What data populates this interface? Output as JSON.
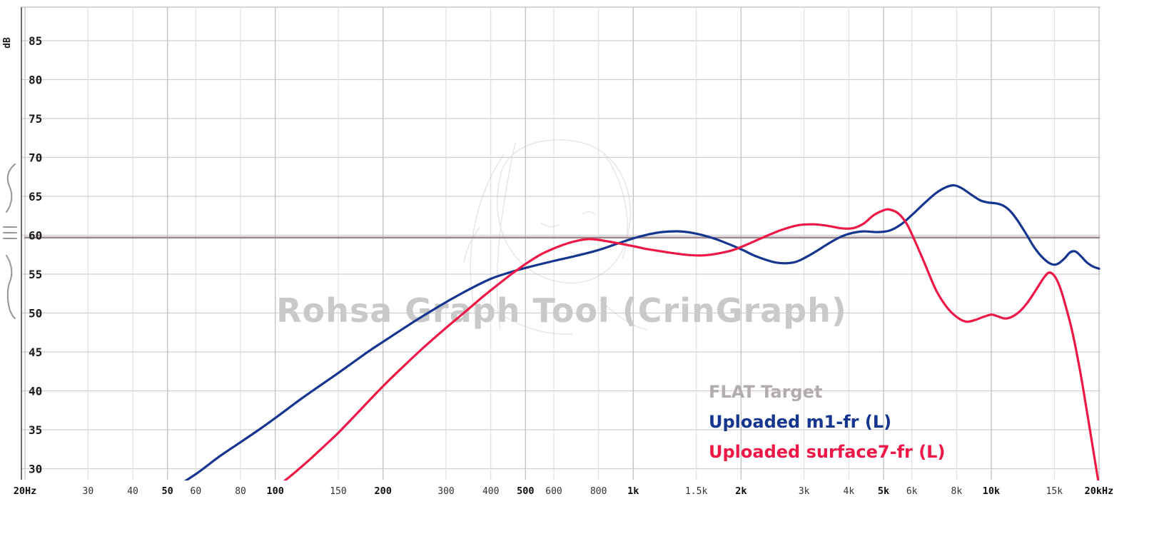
{
  "watermark": "Rohsa Graph Tool (CrinGraph)",
  "y_axis": {
    "unit": "dB",
    "ticks": [
      85,
      80,
      75,
      70,
      65,
      60,
      55,
      50,
      45,
      40,
      35,
      30
    ]
  },
  "x_axis": {
    "ticks": [
      {
        "f": 20,
        "label": "20Hz",
        "major": true
      },
      {
        "f": 30,
        "label": "30",
        "major": false
      },
      {
        "f": 40,
        "label": "40",
        "major": false
      },
      {
        "f": 50,
        "label": "50",
        "major": true
      },
      {
        "f": 60,
        "label": "60",
        "major": false
      },
      {
        "f": 80,
        "label": "80",
        "major": false
      },
      {
        "f": 100,
        "label": "100",
        "major": true
      },
      {
        "f": 150,
        "label": "150",
        "major": false
      },
      {
        "f": 200,
        "label": "200",
        "major": true
      },
      {
        "f": 300,
        "label": "300",
        "major": false
      },
      {
        "f": 400,
        "label": "400",
        "major": false
      },
      {
        "f": 500,
        "label": "500",
        "major": true
      },
      {
        "f": 600,
        "label": "600",
        "major": false
      },
      {
        "f": 800,
        "label": "800",
        "major": false
      },
      {
        "f": 1000,
        "label": "1k",
        "major": true
      },
      {
        "f": 1500,
        "label": "1.5k",
        "major": false
      },
      {
        "f": 2000,
        "label": "2k",
        "major": true
      },
      {
        "f": 3000,
        "label": "3k",
        "major": false
      },
      {
        "f": 4000,
        "label": "4k",
        "major": false
      },
      {
        "f": 5000,
        "label": "5k",
        "major": true
      },
      {
        "f": 6000,
        "label": "6k",
        "major": false
      },
      {
        "f": 8000,
        "label": "8k",
        "major": false
      },
      {
        "f": 10000,
        "label": "10k",
        "major": true
      },
      {
        "f": 15000,
        "label": "15k",
        "major": false
      },
      {
        "f": 20000,
        "label": "20kHz",
        "major": true
      }
    ]
  },
  "legend": [
    {
      "label": "FLAT Target",
      "color": "#b3acae"
    },
    {
      "label": "Uploaded m1-fr (L)",
      "color": "#16358f"
    },
    {
      "label": "Uploaded surface7-fr (L)",
      "color": "#ee1846"
    }
  ],
  "chart_data": {
    "type": "line",
    "x_scale": "log",
    "xlim": [
      20,
      20000
    ],
    "ylim": [
      30,
      85
    ],
    "ylabel": "dB",
    "grid": true,
    "legend_position": "bottom-right",
    "series": [
      {
        "name": "FLAT Target",
        "color": "#9b8a8e",
        "width": 2.6,
        "points": [
          [
            20,
            59.7
          ],
          [
            20000,
            59.7
          ]
        ]
      },
      {
        "name": "Uploaded m1-fr (L)",
        "color": "#16358f",
        "width": 3.2,
        "points": [
          [
            52,
            27.5
          ],
          [
            60,
            29.3
          ],
          [
            70,
            31.6
          ],
          [
            80,
            33.4
          ],
          [
            90,
            35.0
          ],
          [
            100,
            36.5
          ],
          [
            120,
            39.2
          ],
          [
            150,
            42.3
          ],
          [
            180,
            44.9
          ],
          [
            200,
            46.3
          ],
          [
            250,
            49.2
          ],
          [
            300,
            51.4
          ],
          [
            350,
            53.1
          ],
          [
            400,
            54.4
          ],
          [
            450,
            55.2
          ],
          [
            500,
            55.8
          ],
          [
            600,
            56.7
          ],
          [
            700,
            57.4
          ],
          [
            800,
            58.1
          ],
          [
            900,
            58.9
          ],
          [
            1000,
            59.6
          ],
          [
            1100,
            60.1
          ],
          [
            1200,
            60.4
          ],
          [
            1350,
            60.5
          ],
          [
            1500,
            60.2
          ],
          [
            1700,
            59.5
          ],
          [
            2000,
            58.2
          ],
          [
            2200,
            57.3
          ],
          [
            2500,
            56.5
          ],
          [
            2800,
            56.5
          ],
          [
            3100,
            57.4
          ],
          [
            3500,
            58.9
          ],
          [
            3800,
            59.8
          ],
          [
            4100,
            60.3
          ],
          [
            4400,
            60.5
          ],
          [
            4800,
            60.4
          ],
          [
            5200,
            60.6
          ],
          [
            5600,
            61.4
          ],
          [
            6000,
            62.6
          ],
          [
            6500,
            64.1
          ],
          [
            7000,
            65.4
          ],
          [
            7500,
            66.2
          ],
          [
            7900,
            66.4
          ],
          [
            8300,
            66.0
          ],
          [
            8800,
            65.2
          ],
          [
            9300,
            64.5
          ],
          [
            9800,
            64.2
          ],
          [
            10300,
            64.1
          ],
          [
            10800,
            63.8
          ],
          [
            11300,
            63.1
          ],
          [
            11800,
            62.0
          ],
          [
            12500,
            60.2
          ],
          [
            13200,
            58.4
          ],
          [
            14000,
            57.0
          ],
          [
            14700,
            56.3
          ],
          [
            15300,
            56.3
          ],
          [
            16000,
            57.0
          ],
          [
            16600,
            57.8
          ],
          [
            17200,
            57.9
          ],
          [
            17800,
            57.3
          ],
          [
            18500,
            56.5
          ],
          [
            19200,
            56.0
          ],
          [
            20000,
            55.7
          ]
        ]
      },
      {
        "name": "Uploaded surface7-fr (L)",
        "color": "#ee1846",
        "width": 3.2,
        "points": [
          [
            100,
            27.5
          ],
          [
            110,
            29.0
          ],
          [
            125,
            31.2
          ],
          [
            140,
            33.3
          ],
          [
            150,
            34.6
          ],
          [
            170,
            37.2
          ],
          [
            200,
            40.6
          ],
          [
            230,
            43.3
          ],
          [
            260,
            45.6
          ],
          [
            300,
            48.1
          ],
          [
            340,
            50.2
          ],
          [
            380,
            52.1
          ],
          [
            420,
            53.7
          ],
          [
            460,
            55.1
          ],
          [
            500,
            56.3
          ],
          [
            550,
            57.5
          ],
          [
            600,
            58.3
          ],
          [
            650,
            58.9
          ],
          [
            700,
            59.3
          ],
          [
            750,
            59.5
          ],
          [
            800,
            59.4
          ],
          [
            900,
            59.0
          ],
          [
            1000,
            58.6
          ],
          [
            1100,
            58.2
          ],
          [
            1250,
            57.8
          ],
          [
            1400,
            57.5
          ],
          [
            1550,
            57.4
          ],
          [
            1700,
            57.6
          ],
          [
            1900,
            58.1
          ],
          [
            2100,
            58.9
          ],
          [
            2300,
            59.7
          ],
          [
            2600,
            60.7
          ],
          [
            2900,
            61.3
          ],
          [
            3200,
            61.4
          ],
          [
            3500,
            61.2
          ],
          [
            3800,
            60.9
          ],
          [
            4100,
            60.9
          ],
          [
            4400,
            61.5
          ],
          [
            4700,
            62.6
          ],
          [
            5000,
            63.2
          ],
          [
            5200,
            63.3
          ],
          [
            5500,
            62.8
          ],
          [
            5800,
            61.5
          ],
          [
            6100,
            59.4
          ],
          [
            6500,
            56.5
          ],
          [
            7000,
            53.0
          ],
          [
            7500,
            50.8
          ],
          [
            8000,
            49.5
          ],
          [
            8500,
            48.9
          ],
          [
            9000,
            49.1
          ],
          [
            9500,
            49.5
          ],
          [
            10000,
            49.8
          ],
          [
            10400,
            49.6
          ],
          [
            10900,
            49.3
          ],
          [
            11400,
            49.5
          ],
          [
            12000,
            50.2
          ],
          [
            12600,
            51.3
          ],
          [
            13300,
            52.9
          ],
          [
            14000,
            54.5
          ],
          [
            14500,
            55.2
          ],
          [
            15000,
            54.8
          ],
          [
            15500,
            53.5
          ],
          [
            16000,
            51.5
          ],
          [
            16800,
            47.8
          ],
          [
            17600,
            43.2
          ],
          [
            18400,
            38.0
          ],
          [
            19200,
            32.8
          ],
          [
            20000,
            27.8
          ]
        ]
      }
    ]
  }
}
